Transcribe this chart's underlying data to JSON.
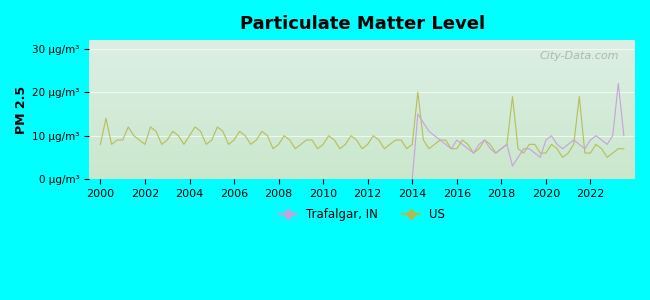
{
  "title": "Particulate Matter Level",
  "ylabel": "PM 2.5",
  "xlabel": "",
  "background_outer": "#00ffff",
  "background_plot_top": "#e8f5e9",
  "background_plot_bottom": "#d4edda",
  "ylim": [
    0,
    32
  ],
  "yticks": [
    0,
    10,
    20,
    30
  ],
  "ytick_labels": [
    "0 μg/m³",
    "10 μg/m³",
    "20 μg/m³",
    "30 μg/m³"
  ],
  "xmin": 1999.5,
  "xmax": 2024.0,
  "xticks": [
    2000,
    2002,
    2004,
    2006,
    2008,
    2010,
    2012,
    2014,
    2016,
    2018,
    2020,
    2022
  ],
  "trafalgar_color": "#c9a0dc",
  "us_color": "#b5b84a",
  "legend_trafalgar": "Trafalgar, IN",
  "legend_us": "US",
  "watermark": "City-Data.com",
  "us_data": {
    "years": [
      2000.0,
      2000.25,
      2000.5,
      2000.75,
      2001.0,
      2001.25,
      2001.5,
      2001.75,
      2002.0,
      2002.25,
      2002.5,
      2002.75,
      2003.0,
      2003.25,
      2003.5,
      2003.75,
      2004.0,
      2004.25,
      2004.5,
      2004.75,
      2005.0,
      2005.25,
      2005.5,
      2005.75,
      2006.0,
      2006.25,
      2006.5,
      2006.75,
      2007.0,
      2007.25,
      2007.5,
      2007.75,
      2008.0,
      2008.25,
      2008.5,
      2008.75,
      2009.0,
      2009.25,
      2009.5,
      2009.75,
      2010.0,
      2010.25,
      2010.5,
      2010.75,
      2011.0,
      2011.25,
      2011.5,
      2011.75,
      2012.0,
      2012.25,
      2012.5,
      2012.75,
      2013.0,
      2013.25,
      2013.5,
      2013.75,
      2014.0,
      2014.25,
      2014.5,
      2014.75,
      2015.0,
      2015.25,
      2015.5,
      2015.75,
      2016.0,
      2016.25,
      2016.5,
      2016.75,
      2017.0,
      2017.25,
      2017.5,
      2017.75,
      2018.0,
      2018.25,
      2018.5,
      2018.75,
      2019.0,
      2019.25,
      2019.5,
      2019.75,
      2020.0,
      2020.25,
      2020.5,
      2020.75,
      2021.0,
      2021.25,
      2021.5,
      2021.75,
      2022.0,
      2022.25,
      2022.5,
      2022.75,
      2023.0,
      2023.25,
      2023.5
    ],
    "values": [
      8,
      14,
      8,
      9,
      9,
      12,
      10,
      9,
      8,
      12,
      11,
      8,
      9,
      11,
      10,
      8,
      10,
      12,
      11,
      8,
      9,
      12,
      11,
      8,
      9,
      11,
      10,
      8,
      9,
      11,
      10,
      7,
      8,
      10,
      9,
      7,
      8,
      9,
      9,
      7,
      8,
      10,
      9,
      7,
      8,
      10,
      9,
      7,
      8,
      10,
      9,
      7,
      8,
      9,
      9,
      7,
      8,
      20,
      9,
      7,
      8,
      9,
      9,
      7,
      7,
      9,
      8,
      6,
      7,
      9,
      8,
      6,
      7,
      8,
      19,
      7,
      6,
      8,
      8,
      6,
      6,
      8,
      7,
      5,
      6,
      8,
      19,
      6,
      6,
      8,
      7,
      5,
      6,
      7,
      7
    ]
  },
  "trafalgar_data": {
    "years": [
      2000.0,
      2000.25,
      2000.5,
      2000.75,
      2001.0,
      2014.0,
      2014.25,
      2014.5,
      2014.75,
      2015.0,
      2015.25,
      2015.5,
      2015.75,
      2016.0,
      2016.25,
      2016.5,
      2016.75,
      2017.0,
      2017.25,
      2017.5,
      2017.75,
      2018.0,
      2018.25,
      2018.5,
      2018.75,
      2019.0,
      2019.25,
      2019.5,
      2019.75,
      2020.0,
      2020.25,
      2020.5,
      2020.75,
      2021.0,
      2021.25,
      2021.5,
      2021.75,
      2022.0,
      2022.25,
      2022.5,
      2022.75,
      2023.0,
      2023.25,
      2023.5
    ],
    "values_pre2014": 0,
    "values": [
      0,
      0,
      0,
      0,
      0,
      0,
      15,
      13,
      11,
      10,
      9,
      8,
      7,
      9,
      8,
      7,
      6,
      8,
      9,
      7,
      6,
      7,
      8,
      3,
      5,
      7,
      7,
      6,
      5,
      9,
      10,
      8,
      7,
      8,
      9,
      8,
      7,
      9,
      10,
      9,
      8,
      10,
      22,
      10
    ]
  }
}
